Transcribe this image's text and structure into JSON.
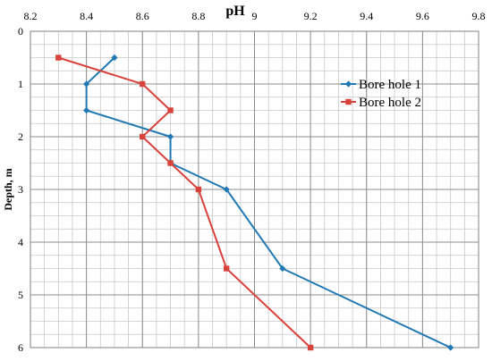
{
  "chart_data": {
    "type": "line",
    "title": "",
    "xlabel": "pH",
    "ylabel": "Depth, m",
    "x_axis_position": "top",
    "y_axis_inverted": true,
    "xlim": [
      8.2,
      9.8
    ],
    "ylim": [
      0,
      6
    ],
    "x_major_ticks": [
      8.2,
      8.4,
      8.6,
      8.8,
      9,
      9.2,
      9.4,
      9.6,
      9.8
    ],
    "x_tick_labels": [
      "8.2",
      "8.4",
      "8.6",
      "8.8",
      "9",
      "9.2",
      "9.4",
      "9.6",
      "9.8"
    ],
    "y_major_ticks": [
      0,
      1,
      2,
      3,
      4,
      5,
      6
    ],
    "y_tick_labels": [
      "0",
      "1",
      "2",
      "3",
      "4",
      "5",
      "6"
    ],
    "x_minor_step": 0.05,
    "y_minor_step": 0.25,
    "grid": true,
    "legend_position": "right",
    "series": [
      {
        "name": "Bore hole 1",
        "color": "#2079b4",
        "marker": "diamond",
        "points": [
          {
            "x": 8.5,
            "y": 0.5
          },
          {
            "x": 8.4,
            "y": 1.0
          },
          {
            "x": 8.4,
            "y": 1.5
          },
          {
            "x": 8.7,
            "y": 2.0
          },
          {
            "x": 8.7,
            "y": 2.5
          },
          {
            "x": 8.9,
            "y": 3.0
          },
          {
            "x": 9.1,
            "y": 4.5
          },
          {
            "x": 9.7,
            "y": 6.0
          }
        ]
      },
      {
        "name": "Bore hole 2",
        "color": "#d9413b",
        "marker": "square",
        "points": [
          {
            "x": 8.3,
            "y": 0.5
          },
          {
            "x": 8.6,
            "y": 1.0
          },
          {
            "x": 8.7,
            "y": 1.5
          },
          {
            "x": 8.6,
            "y": 2.0
          },
          {
            "x": 8.7,
            "y": 2.5
          },
          {
            "x": 8.8,
            "y": 3.0
          },
          {
            "x": 8.9,
            "y": 4.5
          },
          {
            "x": 9.2,
            "y": 6.0
          }
        ]
      }
    ]
  }
}
